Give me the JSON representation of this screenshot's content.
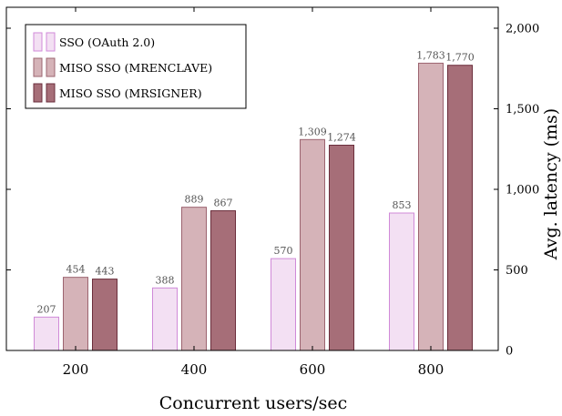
{
  "chart_data": {
    "type": "bar",
    "categories": [
      "200",
      "400",
      "600",
      "800"
    ],
    "series": [
      {
        "name": "SSO (OAuth 2.0)",
        "values": [
          207,
          388,
          570,
          853
        ],
        "fill": "#f3e0f3",
        "stroke": "#d08ad8"
      },
      {
        "name": "MISO SSO (MRENCLAVE)",
        "values": [
          454,
          889,
          1309,
          1783
        ],
        "fill": "#d5b3b8",
        "stroke": "#9c6470"
      },
      {
        "name": "MISO SSO (MRSIGNER)",
        "values": [
          443,
          867,
          1274,
          1770
        ],
        "fill": "#a66e78",
        "stroke": "#6b2e3c"
      }
    ],
    "value_labels": [
      [
        "207",
        "388",
        "570",
        "853"
      ],
      [
        "454",
        "889",
        "1,309",
        "1,783"
      ],
      [
        "443",
        "867",
        "1,274",
        "1,770"
      ]
    ],
    "xlabel": "Concurrent users/sec",
    "ylabel": "Avg. latency (ms)",
    "ylim": [
      0,
      2000
    ],
    "yticks": [
      0,
      500,
      1000,
      1500,
      2000
    ],
    "ytick_labels": [
      "0",
      "500",
      "1,000",
      "1,500",
      "2,000"
    ],
    "y_axis_position": "right",
    "legend_position": "top-left",
    "grid": false
  }
}
